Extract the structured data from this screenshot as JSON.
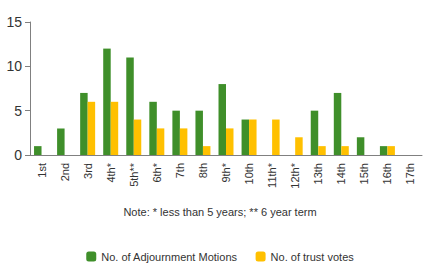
{
  "chart_data": {
    "type": "bar",
    "categories": [
      "1st",
      "2nd",
      "3rd",
      "4th*",
      "5th**",
      "6th*",
      "7th",
      "8th",
      "9th*",
      "10th",
      "11th*",
      "12th*",
      "13th",
      "14th",
      "15th",
      "16th",
      "17th"
    ],
    "series": [
      {
        "name": "No. of Adjournment Motions",
        "color": "#3f8f2a",
        "values": [
          1,
          3,
          7,
          12,
          11,
          6,
          5,
          5,
          8,
          4,
          0,
          0,
          5,
          7,
          2,
          1,
          0
        ]
      },
      {
        "name": "No. of trust votes",
        "color": "#ffc000",
        "values": [
          0,
          0,
          6,
          6,
          4,
          3,
          3,
          1,
          3,
          4,
          4,
          2,
          1,
          1,
          0,
          1,
          0
        ]
      }
    ],
    "annotations": [
      "Note: * less than 5 years; ** 6 year term"
    ],
    "ylim": [
      0,
      15
    ],
    "yticks": [
      0,
      5,
      10,
      15
    ],
    "grid": false,
    "legend": "bottom"
  }
}
